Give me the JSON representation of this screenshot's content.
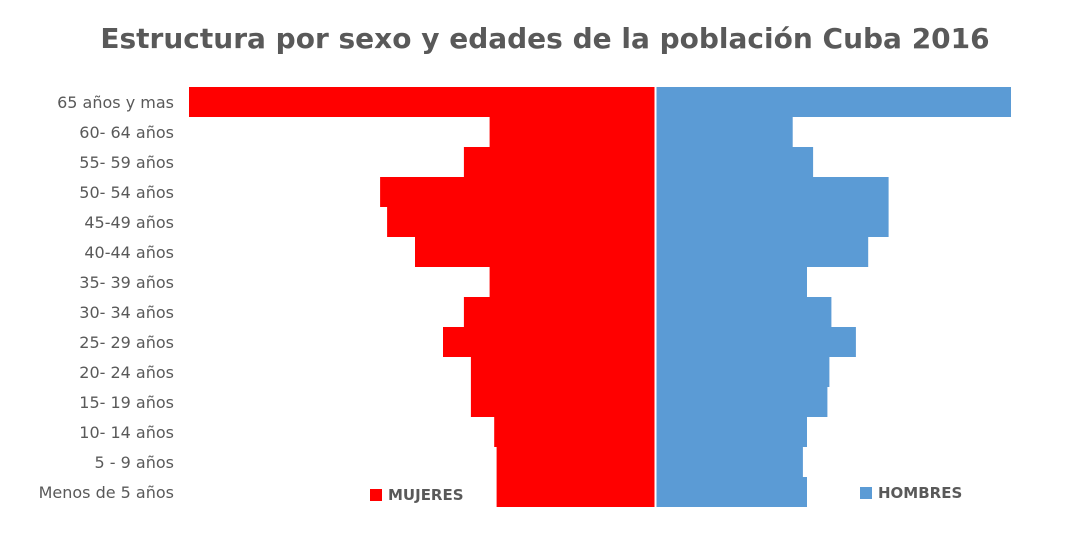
{
  "chart_data": {
    "type": "bar",
    "orientation": "horizontal-population-pyramid",
    "title": "Estructura por sexo y edades de la población Cuba 2016",
    "categories": [
      "65 años y mas",
      "60- 64 años",
      "55- 59 años",
      "50- 54 años",
      "45-49 años",
      "40-44 años",
      "35- 39 años",
      "30- 34 años",
      "25- 29 años",
      "20- 24 años",
      "15- 19 años",
      "10- 14 años",
      "5 - 9 años",
      "Menos de 5 años"
    ],
    "series": [
      {
        "name": "MUJERES",
        "color": "#ff0000",
        "side": "left",
        "values": [
          1000,
          355,
          410,
          590,
          575,
          515,
          355,
          410,
          455,
          395,
          395,
          345,
          340,
          340
        ]
      },
      {
        "name": "HOMBRES",
        "color": "#5b9bd5",
        "side": "right",
        "values": [
          870,
          335,
          385,
          570,
          570,
          520,
          370,
          430,
          490,
          425,
          420,
          370,
          360,
          370
        ]
      }
    ],
    "xlim": [
      -1000,
      1000
    ],
    "grid": false,
    "legend": "bottom"
  }
}
